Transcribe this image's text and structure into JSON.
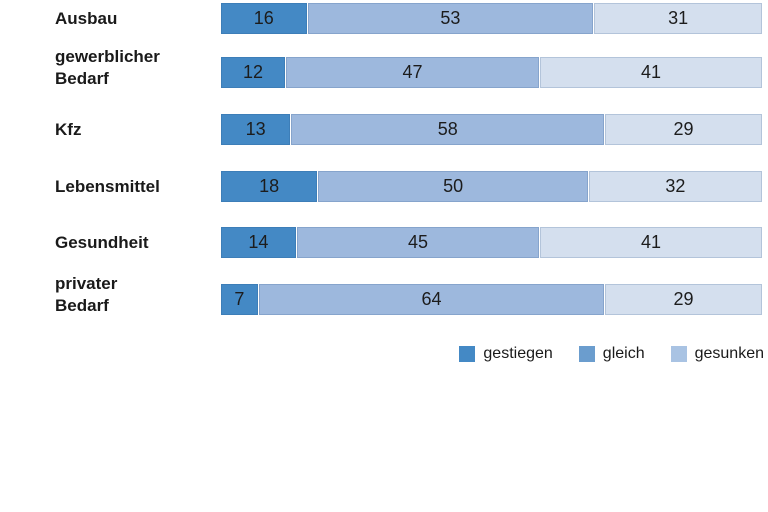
{
  "chart_data": {
    "type": "bar",
    "orientation": "horizontal",
    "stacked": true,
    "title": "",
    "xlabel": "",
    "ylabel": "",
    "xlim": [
      0,
      100
    ],
    "grid": false,
    "legend_position": "bottom-right",
    "categories": [
      {
        "lines": [
          "Ausbau"
        ]
      },
      {
        "lines": [
          "gewerblicher",
          "Bedarf"
        ]
      },
      {
        "lines": [
          "Kfz"
        ]
      },
      {
        "lines": [
          "Lebensmittel"
        ]
      },
      {
        "lines": [
          "Gesundheit"
        ]
      },
      {
        "lines": [
          "privater",
          "Bedarf"
        ]
      }
    ],
    "series": [
      {
        "name": "gestiegen",
        "color": "#4489c5",
        "values": [
          16,
          12,
          13,
          18,
          14,
          7
        ]
      },
      {
        "name": "gleich",
        "color": "#9db8dd",
        "values": [
          53,
          47,
          58,
          50,
          45,
          64
        ]
      },
      {
        "name": "gesunken",
        "color": "#d4dfee",
        "values": [
          31,
          41,
          29,
          32,
          41,
          29
        ]
      }
    ],
    "legend": [
      {
        "label": "gestiegen",
        "color": "#4489c5"
      },
      {
        "label": "gleich",
        "color": "#6b9dce"
      },
      {
        "label": "gesunken",
        "color": "#a9c3e3"
      }
    ],
    "text_color": "#1a1a1a"
  }
}
